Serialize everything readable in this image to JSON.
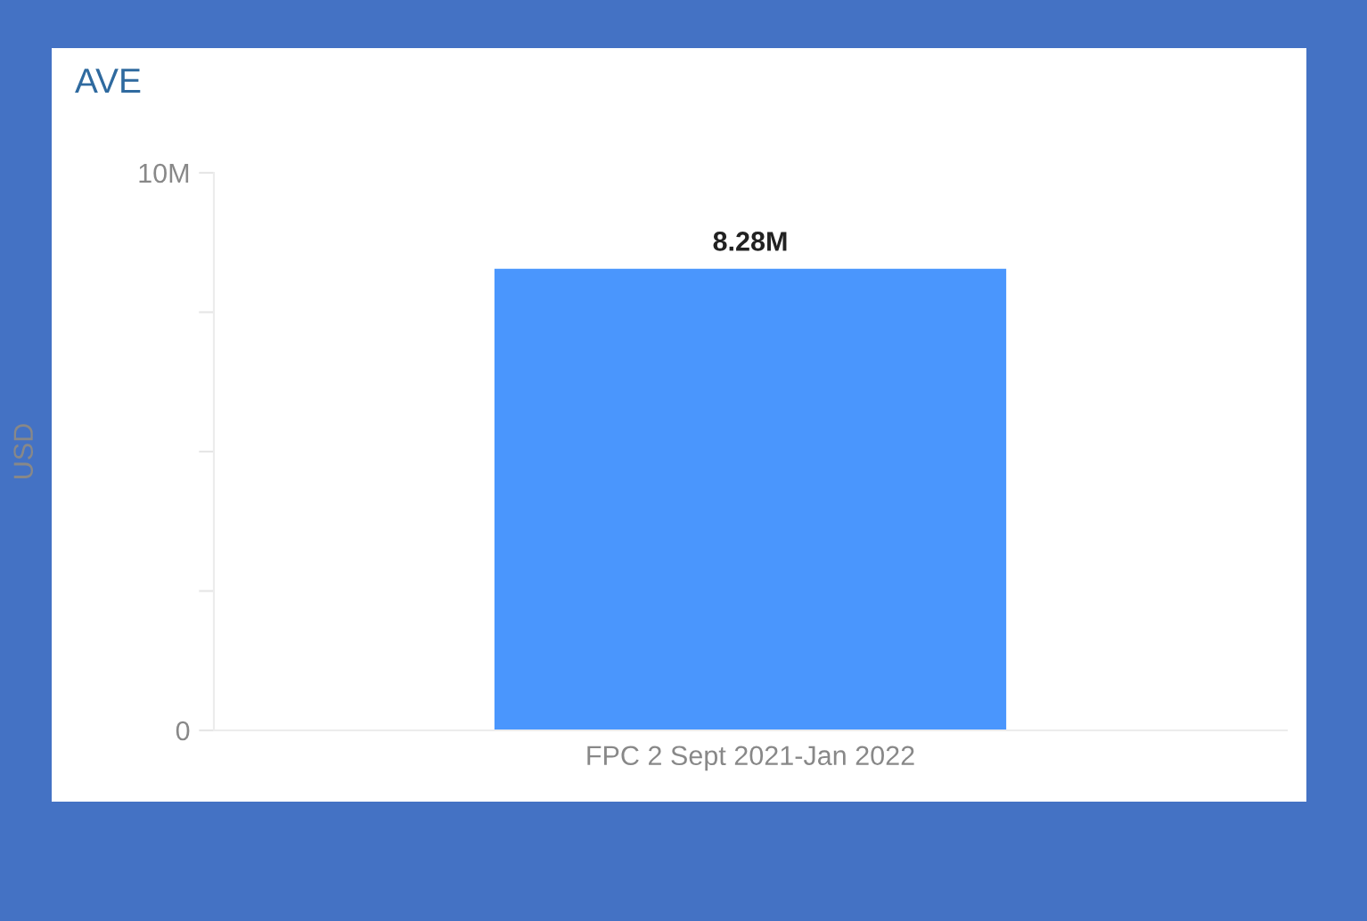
{
  "chart_data": {
    "type": "bar",
    "title": "AVE",
    "ylabel": "USD",
    "categories": [
      "FPC 2 Sept 2021-Jan 2022"
    ],
    "values": [
      8280000
    ],
    "value_labels": [
      "8.28M"
    ],
    "color": "#4a96fd",
    "ylim": [
      0,
      10000000
    ],
    "yticks": [
      {
        "value": 0,
        "label": "0"
      },
      {
        "value": 2500000,
        "label": null
      },
      {
        "value": 5000000,
        "label": null
      },
      {
        "value": 7500000,
        "label": null
      },
      {
        "value": 10000000,
        "label": "10M"
      }
    ],
    "grid": false
  }
}
